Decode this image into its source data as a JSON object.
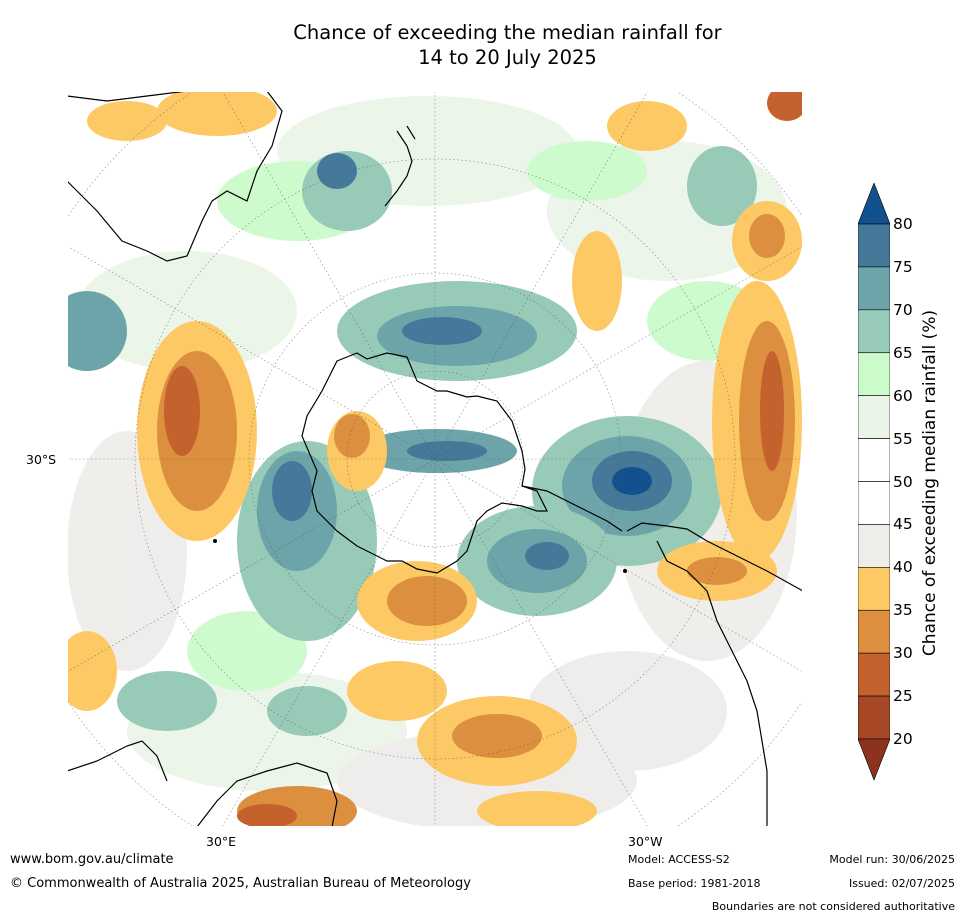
{
  "title": {
    "line1": "Chance of exceeding the median rainfall for",
    "line2": "14 to 20 July 2025"
  },
  "map": {
    "projection": "south-polar stereographic",
    "lat_label": "30°S",
    "lon_labels": {
      "east": "30°E",
      "west": "30°W"
    }
  },
  "colorbar": {
    "label": "Chance of exceeding median rainfall (%)",
    "ticks": [
      "80",
      "75",
      "70",
      "65",
      "60",
      "55",
      "50",
      "45",
      "40",
      "35",
      "30",
      "25",
      "20"
    ],
    "bins": [
      {
        "range": ">80",
        "color": "#13508e"
      },
      {
        "range": "75-80",
        "color": "#457899"
      },
      {
        "range": "70-75",
        "color": "#6ca4a9"
      },
      {
        "range": "65-70",
        "color": "#98cbb7"
      },
      {
        "range": "60-65",
        "color": "#ccfbcb"
      },
      {
        "range": "55-60",
        "color": "#eaf5e8"
      },
      {
        "range": "50-55",
        "color": "#ffffff"
      },
      {
        "range": "45-50",
        "color": "#ffffff"
      },
      {
        "range": "40-45",
        "color": "#efedea"
      },
      {
        "range": "35-40",
        "color": "#fdc965"
      },
      {
        "range": "30-35",
        "color": "#dc8f3f"
      },
      {
        "range": "25-30",
        "color": "#c3622c"
      },
      {
        "range": "20-25",
        "color": "#a64726"
      },
      {
        "range": "<20",
        "color": "#8c321d"
      }
    ]
  },
  "footer": {
    "url": "www.bom.gov.au/climate",
    "copyright": "© Commonwealth of Australia 2025, Australian Bureau of Meteorology",
    "model": "Model: ACCESS-S2",
    "base_period": "Base period: 1981-2018",
    "model_run": "Model run: 30/06/2025",
    "issued": "Issued: 02/07/2025",
    "disclaimer": "Boundaries are not considered authoritative"
  }
}
